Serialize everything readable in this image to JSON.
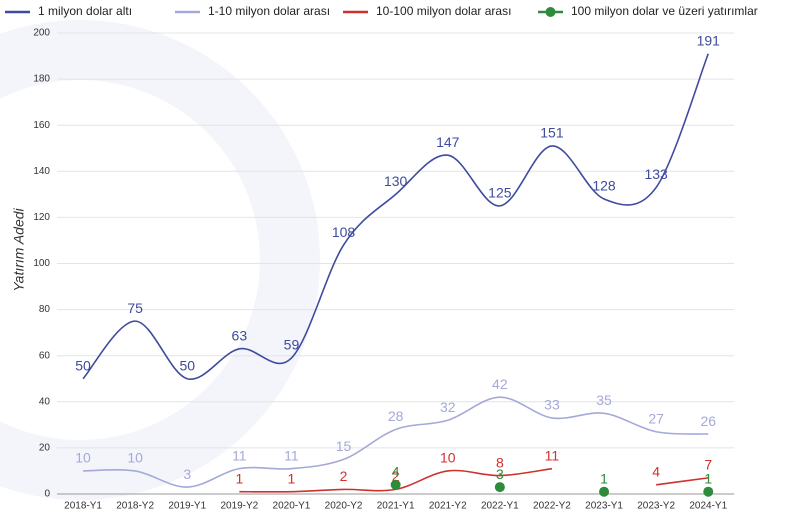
{
  "chart_data": {
    "type": "line",
    "y_label": "Yatırım Adedi",
    "categories": [
      "2018-Y1",
      "2018-Y2",
      "2019-Y1",
      "2019-Y2",
      "2020-Y1",
      "2020-Y2",
      "2021-Y1",
      "2021-Y2",
      "2022-Y1",
      "2022-Y2",
      "2023-Y1",
      "2023-Y2",
      "2024-Y1"
    ],
    "series": [
      {
        "name": "1 milyon dolar altı",
        "color": "#3f4b9e",
        "values": [
          50,
          75,
          50,
          63,
          59,
          108,
          130,
          147,
          125,
          151,
          128,
          133,
          191
        ]
      },
      {
        "name": "1-10 milyon dolar arası",
        "color": "#a4a9d8",
        "values": [
          10,
          10,
          3,
          11,
          11,
          15,
          28,
          32,
          42,
          33,
          35,
          27,
          26
        ]
      },
      {
        "name": "10-100 milyon dolar arası",
        "color": "#d0312d",
        "values": [
          null,
          null,
          null,
          1,
          1,
          2,
          2,
          10,
          8,
          11,
          null,
          4,
          7
        ]
      },
      {
        "name": "100 milyon dolar ve üzeri yatırımlar",
        "color": "#2e8b3a",
        "markers_only": true,
        "values": [
          null,
          null,
          null,
          null,
          null,
          null,
          4,
          null,
          3,
          null,
          1,
          null,
          1
        ]
      }
    ],
    "ylim": [
      0,
      200
    ],
    "yticks": [
      0,
      20,
      40,
      60,
      80,
      100,
      120,
      140,
      160,
      180,
      200
    ],
    "grid": true
  }
}
